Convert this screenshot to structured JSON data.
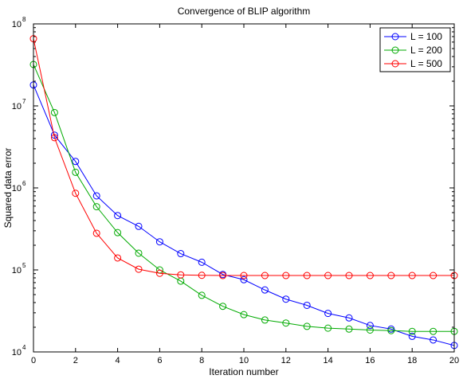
{
  "chart_data": {
    "type": "line",
    "title": "Convergence of BLIP algorithm",
    "xlabel": "Iteration number",
    "ylabel": "Squared data error",
    "xlim": [
      0,
      20
    ],
    "ylim": [
      10000,
      100000000
    ],
    "yscale": "log",
    "grid": false,
    "legend_position": "top-right",
    "x_ticks": [
      "0",
      "2",
      "4",
      "6",
      "8",
      "10",
      "12",
      "14",
      "16",
      "18",
      "20"
    ],
    "y_ticks": [
      {
        "base": "10",
        "exp": "4",
        "value": 10000
      },
      {
        "base": "10",
        "exp": "5",
        "value": 100000
      },
      {
        "base": "10",
        "exp": "6",
        "value": 1000000
      },
      {
        "base": "10",
        "exp": "7",
        "value": 10000000
      },
      {
        "base": "10",
        "exp": "8",
        "value": 100000000
      }
    ],
    "x": [
      0,
      1,
      2,
      3,
      4,
      5,
      6,
      7,
      8,
      9,
      10,
      11,
      12,
      13,
      14,
      15,
      16,
      17,
      18,
      19,
      20
    ],
    "series": [
      {
        "name": "L = 100",
        "color": "#0000ff",
        "marker": "circle",
        "values": [
          18000000,
          4400000,
          2100000,
          800000,
          460000,
          340000,
          220000,
          158000,
          124000,
          88000,
          76000,
          57000,
          44000,
          37000,
          29500,
          26000,
          21000,
          19000,
          15500,
          14000,
          12000
        ]
      },
      {
        "name": "L = 200",
        "color": "#00aa00",
        "marker": "circle",
        "values": [
          32000000,
          8300000,
          1550000,
          590000,
          285000,
          160000,
          100000,
          73000,
          49000,
          36000,
          28500,
          24500,
          22500,
          20500,
          19500,
          19000,
          18500,
          18200,
          17800,
          17800,
          17800
        ]
      },
      {
        "name": "L = 500",
        "color": "#ff0000",
        "marker": "circle",
        "values": [
          66000000,
          4100000,
          860000,
          280000,
          140000,
          102000,
          91000,
          87000,
          86000,
          85500,
          85500,
          85500,
          85500,
          85500,
          85500,
          85500,
          85500,
          85500,
          85500,
          85500,
          85500
        ]
      }
    ]
  }
}
